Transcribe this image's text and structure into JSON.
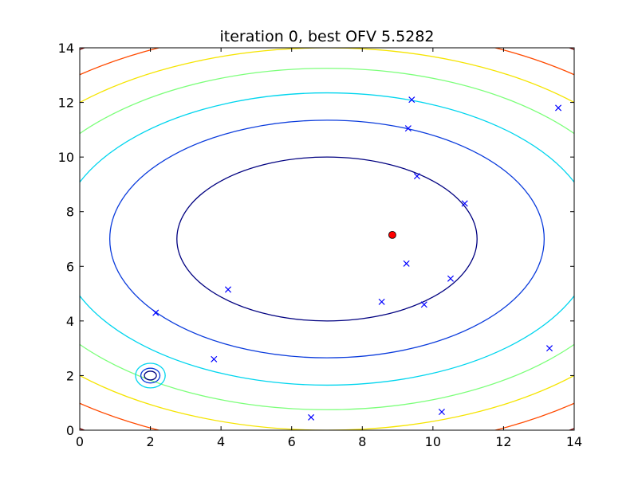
{
  "chart_data": {
    "type": "scatter",
    "title": "iteration 0, best OFV 5.5282",
    "xlabel": "",
    "ylabel": "",
    "xlim": [
      0,
      14
    ],
    "ylim": [
      0,
      14
    ],
    "x_ticks": [
      "0",
      "2",
      "4",
      "6",
      "8",
      "10",
      "12",
      "14"
    ],
    "y_ticks": [
      "0",
      "2",
      "4",
      "6",
      "8",
      "10",
      "12",
      "14"
    ],
    "grid": false,
    "contours": {
      "center": [
        7,
        7
      ],
      "levels": [
        {
          "rx": 4.25,
          "ry": 3.0,
          "color": "#000080"
        },
        {
          "rx": 6.15,
          "ry": 4.35,
          "color": "#0a3bdc"
        },
        {
          "rx": 7.6,
          "ry": 5.35,
          "color": "#00d5ee"
        },
        {
          "rx": 8.9,
          "ry": 6.25,
          "color": "#7cff7a"
        },
        {
          "rx": 10.0,
          "ry": 7.0,
          "color": "#f5e400"
        },
        {
          "rx": 11.1,
          "ry": 7.75,
          "color": "#ff4a00"
        },
        {
          "rx": 12.1,
          "ry": 8.5,
          "color": "#7f0000"
        }
      ],
      "well": {
        "center": [
          2.0,
          2.0
        ],
        "rings": [
          {
            "rx": 0.17,
            "ry": 0.16,
            "color": "#000080"
          },
          {
            "rx": 0.27,
            "ry": 0.27,
            "color": "#0a3bdc"
          },
          {
            "rx": 0.42,
            "ry": 0.45,
            "color": "#00d5ee"
          }
        ]
      }
    },
    "samples": {
      "color": "#0000ff",
      "marker": "x",
      "points": [
        [
          9.4,
          12.1
        ],
        [
          13.55,
          11.8
        ],
        [
          9.3,
          11.05
        ],
        [
          9.55,
          9.3
        ],
        [
          10.9,
          8.3
        ],
        [
          9.25,
          6.1
        ],
        [
          10.5,
          5.55
        ],
        [
          4.2,
          5.15
        ],
        [
          8.55,
          4.7
        ],
        [
          9.75,
          4.6
        ],
        [
          2.15,
          4.3
        ],
        [
          3.8,
          2.6
        ],
        [
          13.3,
          3.0
        ],
        [
          6.55,
          0.47
        ],
        [
          10.25,
          0.67
        ]
      ]
    },
    "best": {
      "x": 8.85,
      "y": 7.15,
      "color": "#ff0000"
    }
  }
}
